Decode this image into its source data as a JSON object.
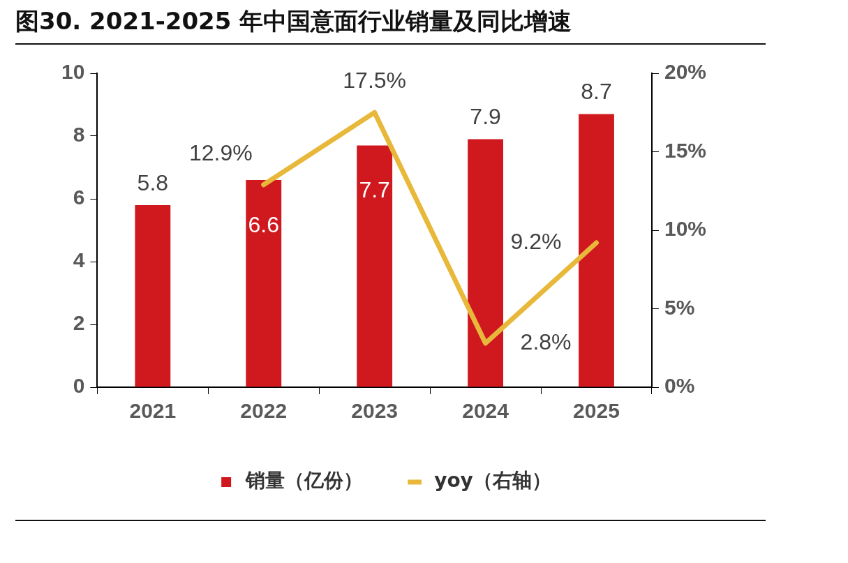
{
  "chart_data": {
    "type": "bar",
    "title": "图30. 2021-2025 年中国意面行业销量及同比增速",
    "categories": [
      "2021",
      "2022",
      "2023",
      "2024",
      "2025"
    ],
    "series": [
      {
        "name": "销量（亿份）",
        "color": "#d0191f",
        "values": [
          5.8,
          6.6,
          7.7,
          7.9,
          8.7
        ],
        "value_labels": [
          "5.8",
          "6.6",
          "7.7",
          "7.9",
          "8.7"
        ]
      },
      {
        "name": "yoy（右轴）",
        "type": "line",
        "axis": "y2",
        "color": "#e8b83a",
        "values": [
          null,
          12.9,
          17.5,
          2.8,
          9.2
        ],
        "value_labels": [
          null,
          "12.9%",
          "17.5%",
          "2.8%",
          "9.2%"
        ]
      }
    ],
    "ylim": [
      0,
      10
    ],
    "yticks": [
      0,
      2,
      4,
      6,
      8,
      10
    ],
    "y2lim": [
      0,
      20
    ],
    "y2ticks": [
      {
        "value": 0,
        "label": "0%"
      },
      {
        "value": 5,
        "label": "5%"
      },
      {
        "value": 10,
        "label": "10%"
      },
      {
        "value": 15,
        "label": "15%"
      },
      {
        "value": 20,
        "label": "20%"
      }
    ],
    "grid": false,
    "legend": "bottom",
    "marker": "none",
    "line_style": "solid"
  }
}
